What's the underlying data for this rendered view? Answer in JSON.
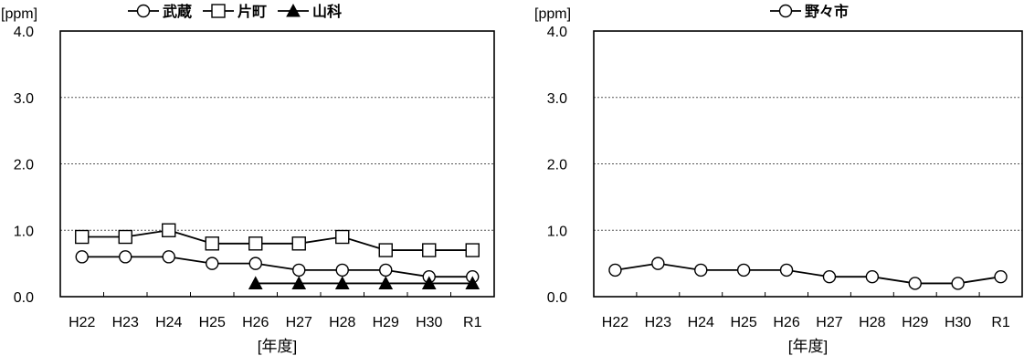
{
  "chart_data": [
    {
      "type": "line",
      "title": "",
      "ylabel": "[ppm]",
      "xlabel": "[年度]",
      "ylim": [
        0,
        4
      ],
      "yticks": [
        "0.0",
        "1.0",
        "2.0",
        "3.0",
        "4.0"
      ],
      "categories": [
        "H22",
        "H23",
        "H24",
        "H25",
        "H26",
        "H27",
        "H28",
        "H29",
        "H30",
        "R1"
      ],
      "grid": true,
      "legend_position": "top",
      "series": [
        {
          "name": "武蔵",
          "marker": "circle",
          "values": [
            0.6,
            0.6,
            0.6,
            0.5,
            0.5,
            0.4,
            0.4,
            0.4,
            0.3,
            0.3
          ]
        },
        {
          "name": "片町",
          "marker": "square",
          "values": [
            0.9,
            0.9,
            1.0,
            0.8,
            0.8,
            0.8,
            0.9,
            0.7,
            0.7,
            0.7
          ]
        },
        {
          "name": "山科",
          "marker": "triangle",
          "values": [
            null,
            null,
            null,
            null,
            0.2,
            0.2,
            0.2,
            0.2,
            0.2,
            0.2
          ]
        }
      ]
    },
    {
      "type": "line",
      "title": "",
      "ylabel": "[ppm]",
      "xlabel": "[年度]",
      "ylim": [
        0,
        4
      ],
      "yticks": [
        "0.0",
        "1.0",
        "2.0",
        "3.0",
        "4.0"
      ],
      "categories": [
        "H22",
        "H23",
        "H24",
        "H25",
        "H26",
        "H27",
        "H28",
        "H29",
        "H30",
        "R1"
      ],
      "grid": true,
      "legend_position": "top",
      "series": [
        {
          "name": "野々市",
          "marker": "circle",
          "values": [
            0.4,
            0.5,
            0.4,
            0.4,
            0.4,
            0.3,
            0.3,
            0.2,
            0.2,
            0.3
          ]
        }
      ]
    }
  ]
}
